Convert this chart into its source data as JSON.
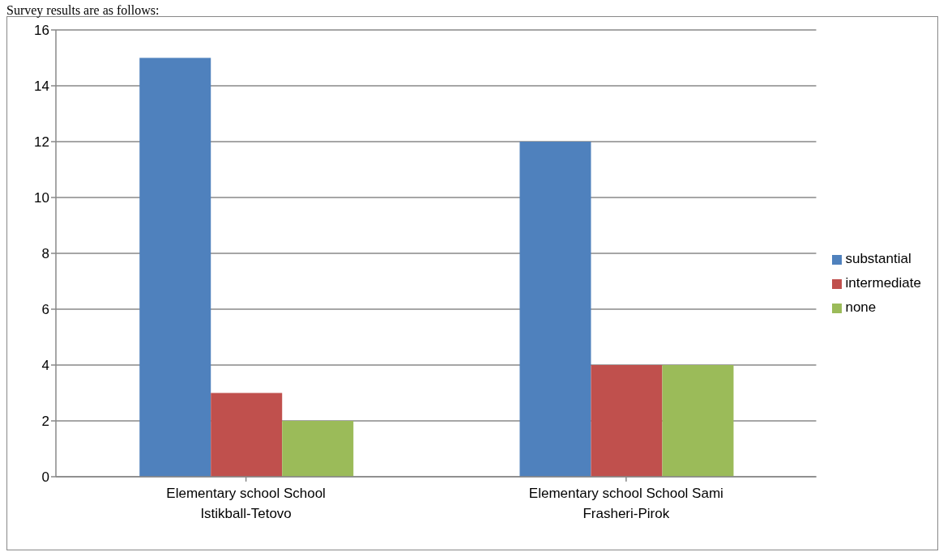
{
  "chart_data": {
    "type": "bar",
    "title": "Survey results are as follows:",
    "categories": [
      "Elementary school School Istikball-Tetovo",
      "Elementary school School Sami Frasheri-Pirok"
    ],
    "series": [
      {
        "name": "substantial",
        "color": "#4f81bd",
        "values": [
          15,
          12
        ]
      },
      {
        "name": "intermediate",
        "color": "#c0504d",
        "values": [
          3,
          4
        ]
      },
      {
        "name": "none",
        "color": "#9bbb59",
        "values": [
          2,
          4
        ]
      }
    ],
    "ylim": [
      0,
      16
    ],
    "yticks": [
      0,
      2,
      4,
      6,
      8,
      10,
      12,
      14,
      16
    ],
    "grid": "y",
    "legend": "right"
  }
}
